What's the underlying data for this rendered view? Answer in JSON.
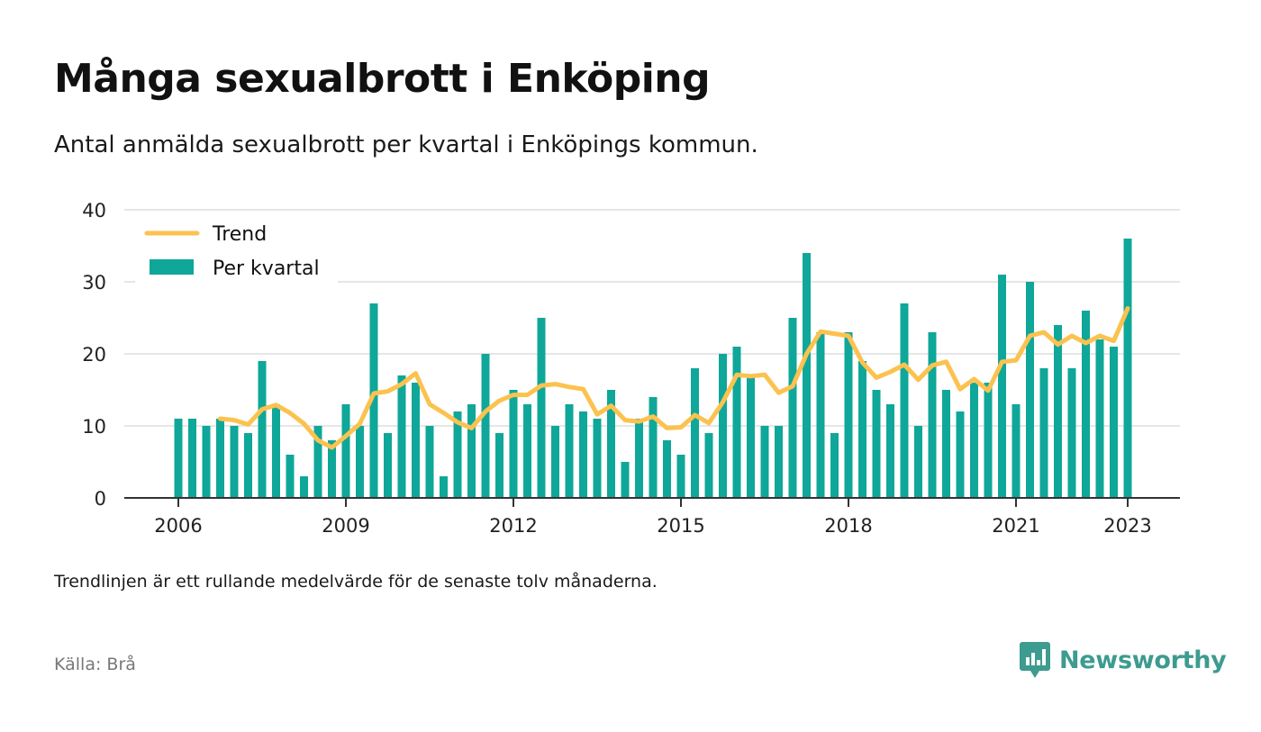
{
  "title": "Många sexualbrott i Enköping",
  "subtitle": "Antal anmälda sexualbrott per kvartal i Enköpings kommun.",
  "note": "Trendlinjen är ett rullande medelvärde för de senaste tolv månaderna.",
  "source": "Källa: Brå",
  "brand": {
    "name": "Newsworthy",
    "color": "#3d9b8f"
  },
  "legend": {
    "trend_label": "Trend",
    "bars_label": "Per kvartal"
  },
  "chart_data": {
    "type": "bar",
    "title": "Många sexualbrott i Enköping",
    "colors": {
      "bars": "#0fa799",
      "trend": "#fbc24f",
      "grid": "#dddddd",
      "axis": "#333333"
    },
    "ylim": [
      0,
      40
    ],
    "yticks": [
      0,
      10,
      20,
      30,
      40
    ],
    "xticks": [
      "2006",
      "2009",
      "2012",
      "2015",
      "2018",
      "2021",
      "2023"
    ],
    "grid": true,
    "legend_position": "top-left",
    "x_start": "2006 Q1",
    "x_end": "2023 Q1",
    "series": [
      {
        "name": "Per kvartal",
        "type": "bar",
        "values": [
          11,
          11,
          10,
          11,
          10,
          9,
          19,
          13,
          6,
          3,
          10,
          8,
          13,
          10,
          27,
          9,
          17,
          16,
          10,
          3,
          12,
          13,
          20,
          9,
          15,
          13,
          25,
          10,
          13,
          12,
          11,
          15,
          5,
          11,
          14,
          8,
          6,
          18,
          9,
          20,
          21,
          17,
          10,
          10,
          25,
          34,
          23,
          9,
          23,
          19,
          15,
          13,
          27,
          10,
          23,
          15,
          12,
          16,
          16,
          31,
          13,
          30,
          18,
          24,
          18,
          26,
          22,
          21,
          36
        ]
      },
      {
        "name": "Trend",
        "type": "line",
        "values": [
          null,
          null,
          null,
          11,
          10.8,
          10.2,
          12.3,
          12.9,
          11.8,
          10.3,
          8,
          7,
          8.6,
          10.3,
          14.5,
          14.8,
          15.8,
          17.3,
          13,
          11.8,
          10.5,
          9.7,
          12,
          13.5,
          14.3,
          14.3,
          15.6,
          15.8,
          15.4,
          15.1,
          11.6,
          12.8,
          10.8,
          10.6,
          11.3,
          9.7,
          9.8,
          11.5,
          10.4,
          13.3,
          17.1,
          16.9,
          17.1,
          14.6,
          15.5,
          20,
          23.1,
          22.8,
          22.5,
          18.8,
          16.7,
          17.5,
          18.5,
          16.4,
          18.4,
          18.9,
          15.1,
          16.5,
          14.9,
          18.9,
          19.1,
          22.5,
          23,
          21.3,
          22.5,
          21.5,
          22.5,
          21.8,
          26.3
        ]
      }
    ]
  }
}
